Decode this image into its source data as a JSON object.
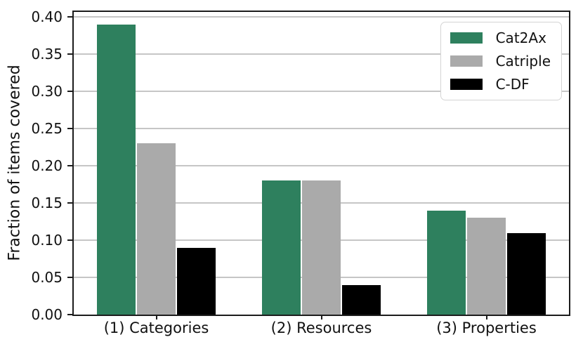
{
  "chart_data": {
    "type": "bar",
    "title": "",
    "xlabel": "",
    "ylabel": "Fraction of items covered",
    "categories": [
      "(1) Categories",
      "(2) Resources",
      "(3) Properties"
    ],
    "series": [
      {
        "name": "Cat2Ax",
        "color": "#2e805e",
        "values": [
          0.39,
          0.18,
          0.14
        ]
      },
      {
        "name": "Catriple",
        "color": "#aaaaaa",
        "values": [
          0.23,
          0.18,
          0.13
        ]
      },
      {
        "name": "C-DF",
        "color": "#000000",
        "values": [
          0.09,
          0.04,
          0.11
        ]
      }
    ],
    "ylim": [
      0,
      0.407
    ],
    "yticks": [
      0,
      0.05,
      0.1,
      0.15,
      0.2,
      0.25,
      0.3,
      0.35,
      0.4
    ],
    "ytick_labels": [
      "0.00",
      "0.05",
      "0.10",
      "0.15",
      "0.20",
      "0.25",
      "0.30",
      "0.35",
      "0.40"
    ],
    "grid": true,
    "grid_axis": "y",
    "legend": {
      "position": "upper right",
      "entries": [
        "Cat2Ax",
        "Catriple",
        "C-DF"
      ]
    },
    "colors": {
      "grid": "#c6c6c6",
      "spine": "#1c1c1c",
      "text": "#111111"
    }
  }
}
